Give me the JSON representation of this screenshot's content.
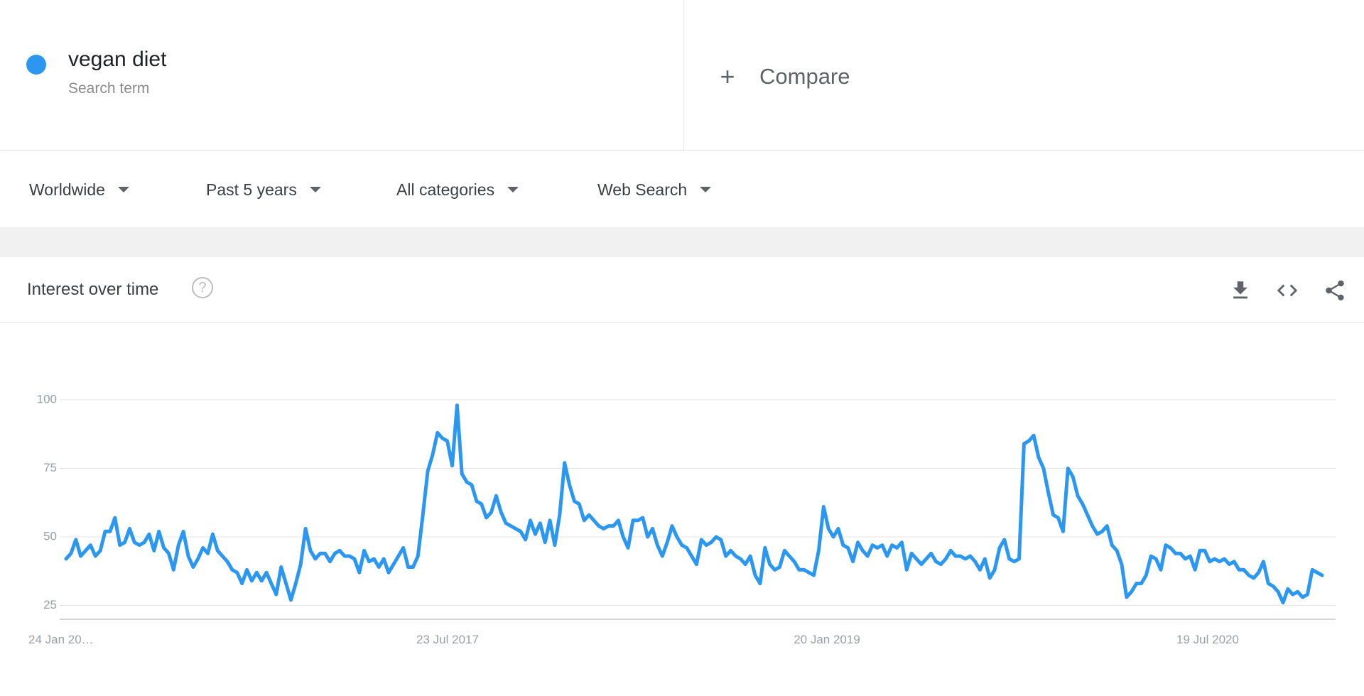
{
  "search_term": {
    "name": "vegan diet",
    "type_label": "Search term",
    "color": "#2b97f0"
  },
  "compare": {
    "label": "Compare",
    "icon": "plus-icon"
  },
  "filters": [
    {
      "label": "Worldwide"
    },
    {
      "label": "Past 5 years"
    },
    {
      "label": "All categories"
    },
    {
      "label": "Web Search"
    }
  ],
  "card": {
    "title": "Interest over time",
    "help_icon": "?",
    "actions": [
      "download-icon",
      "embed-code-icon",
      "share-icon"
    ]
  },
  "chart_data": {
    "type": "line",
    "title": "",
    "xlabel": "",
    "ylabel": "",
    "ylim": [
      0,
      100
    ],
    "y_ticks": [
      25,
      50,
      75,
      100
    ],
    "x_tick_labels": [
      "24 Jan 20…",
      "23 Jul 2017",
      "20 Jan 2019",
      "19 Jul 2020"
    ],
    "grid": true,
    "line_color": "#2b97f0",
    "series": [
      {
        "values": [
          42,
          44,
          49,
          43,
          45,
          47,
          43,
          45,
          52,
          52,
          57,
          47,
          48,
          53,
          48,
          47,
          48,
          51,
          45,
          52,
          46,
          44,
          38,
          47,
          52,
          43,
          39,
          42,
          46,
          44,
          51,
          45,
          43,
          41,
          38,
          37,
          33,
          38,
          34,
          37,
          34,
          37,
          33,
          29,
          39,
          33,
          27,
          33,
          40,
          53,
          45,
          42,
          44,
          44,
          41,
          44,
          45,
          43,
          43,
          42,
          37,
          45,
          41,
          42,
          39,
          42,
          37,
          40,
          43,
          46,
          39,
          39,
          43,
          58,
          74,
          80,
          88,
          86,
          85,
          76,
          98,
          73,
          70,
          69,
          63,
          62,
          57,
          59,
          65,
          59,
          55,
          54,
          53,
          52,
          49,
          56,
          51,
          55,
          48,
          56,
          47,
          58,
          77,
          69,
          63,
          62,
          56,
          58,
          56,
          54,
          53,
          54,
          54,
          56,
          50,
          46,
          56,
          56,
          57,
          50,
          53,
          47,
          43,
          48,
          54,
          50,
          47,
          46,
          43,
          40,
          49,
          47,
          48,
          50,
          49,
          43,
          45,
          43,
          42,
          40,
          43,
          36,
          33,
          46,
          40,
          38,
          39,
          45,
          43,
          41,
          38,
          38,
          37,
          36,
          45,
          61,
          53,
          50,
          53,
          47,
          46,
          41,
          48,
          45,
          43,
          47,
          46,
          47,
          43,
          47,
          46,
          48,
          38,
          44,
          42,
          40,
          42,
          44,
          41,
          40,
          42,
          45,
          43,
          43,
          42,
          43,
          41,
          38,
          42,
          35,
          38,
          46,
          49,
          42,
          41,
          42,
          84,
          85,
          87,
          79,
          75,
          66,
          58,
          57,
          52,
          75,
          72,
          65,
          62,
          58,
          54,
          51,
          52,
          54,
          47,
          45,
          40,
          28,
          30,
          33,
          33,
          36,
          43,
          42,
          38,
          47,
          46,
          44,
          44,
          42,
          43,
          38,
          45,
          45,
          41,
          42,
          41,
          42,
          40,
          41,
          38,
          38,
          36,
          35,
          37,
          41,
          33,
          32,
          30,
          26,
          31,
          29,
          30,
          28,
          29,
          38,
          37,
          36
        ]
      }
    ]
  }
}
